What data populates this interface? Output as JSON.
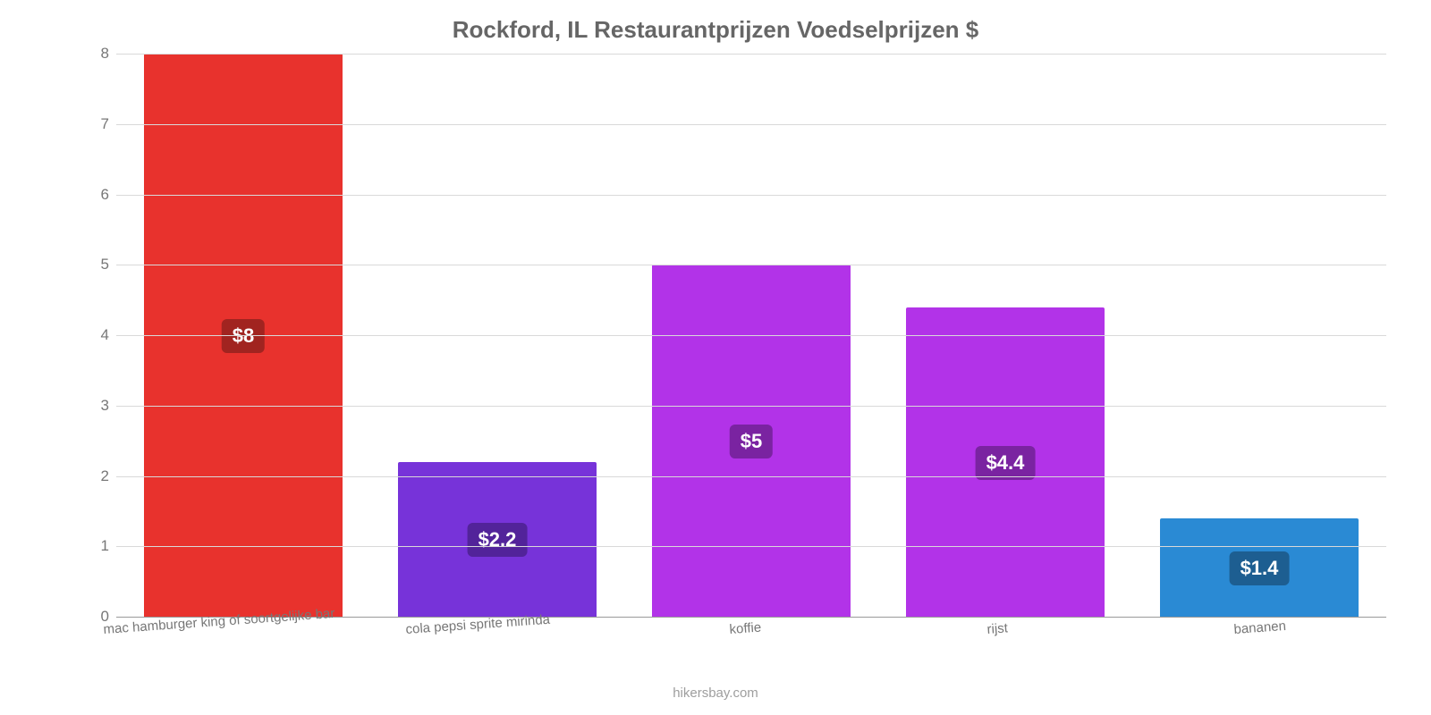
{
  "chart": {
    "type": "bar",
    "title": "Rockford, IL Restaurantprijzen Voedselprijzen $",
    "title_fontsize": 26,
    "title_color": "#666666",
    "background_color": "#ffffff",
    "grid_color": "#d9d9d9",
    "axis_color": "#999999",
    "label_color": "#777777",
    "label_fontsize": 15,
    "tick_fontsize": 17,
    "value_label_fontsize": 22,
    "value_label_text_color": "#ffffff",
    "ylim": [
      0,
      8
    ],
    "ytick_step": 1,
    "yticks": [
      0,
      1,
      2,
      3,
      4,
      5,
      6,
      7,
      8
    ],
    "bar_width_ratio": 0.78,
    "attribution": "hikersbay.com",
    "categories": [
      "mac hamburger king of soortgelijke bar",
      "cola pepsi sprite mirinda",
      "koffie",
      "rijst",
      "bananen"
    ],
    "values": [
      8,
      2.2,
      5,
      4.4,
      1.4
    ],
    "value_labels": [
      "$8",
      "$2.2",
      "$5",
      "$4.4",
      "$1.4"
    ],
    "bar_colors": [
      "#e8322d",
      "#7733d9",
      "#b233e8",
      "#b233e8",
      "#2a8ad4"
    ],
    "badge_colors": [
      "#a12420",
      "#52239a",
      "#7a23a1",
      "#7a23a1",
      "#1d5e91"
    ]
  }
}
